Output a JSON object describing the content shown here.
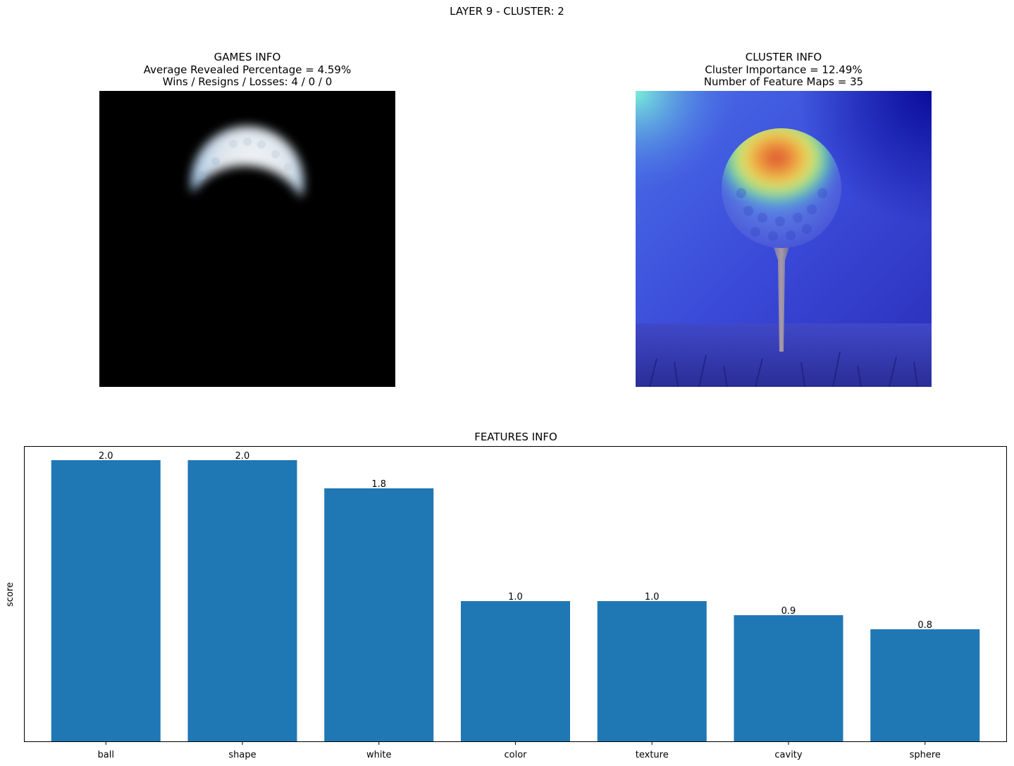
{
  "suptitle": "LAYER 9 - CLUSTER: 2",
  "games_info": {
    "title": "GAMES INFO",
    "line1": "Average Revealed Percentage = 4.59%",
    "line2": "Wins / Resigns / Losses: 4 / 0 / 0"
  },
  "cluster_info": {
    "title": "CLUSTER INFO",
    "line1": "Cluster Importance = 12.49%",
    "line2": "Number of Feature Maps = 35"
  },
  "chart_data": {
    "type": "bar",
    "title": "FEATURES INFO",
    "xlabel": "",
    "ylabel": "score",
    "categories": [
      "ball",
      "shape",
      "white",
      "color",
      "texture",
      "cavity",
      "sphere"
    ],
    "values": [
      2.0,
      2.0,
      1.8,
      1.0,
      1.0,
      0.9,
      0.8
    ],
    "value_labels": [
      "2.0",
      "2.0",
      "1.8",
      "1.0",
      "1.0",
      "0.9",
      "0.8"
    ],
    "ylim": [
      0,
      2.1
    ],
    "bar_color": "#1f77b4",
    "grid": false,
    "y_ticks_shown": false
  }
}
